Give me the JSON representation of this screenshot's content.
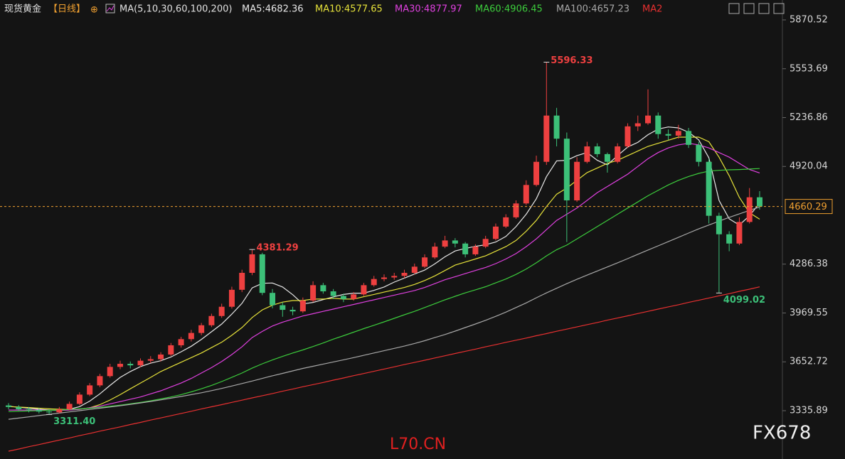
{
  "header": {
    "instrument": "现货黄金",
    "period": "【日线】",
    "add_icon": "⊕",
    "ma_set": "MA(5,10,30,60,100,200)"
  },
  "watermarks": [
    "L70.CN",
    "FX678"
  ],
  "chart_data": {
    "type": "candlestick",
    "ylim": [
      3022.5,
      5907.4
    ],
    "yticks": [
      3335.89,
      3652.72,
      3969.55,
      4286.38,
      4920.04,
      5236.86,
      5553.69,
      5870.52
    ],
    "up_color": "#ee4040",
    "down_color": "#3cc078",
    "last_price_color": "#f0a030",
    "ohlc": [
      [
        3370,
        3385,
        3345,
        3360
      ],
      [
        3360,
        3372,
        3335,
        3345
      ],
      [
        3345,
        3360,
        3325,
        3340
      ],
      [
        3340,
        3352,
        3318,
        3330
      ],
      [
        3330,
        3345,
        3311.4,
        3325
      ],
      [
        3325,
        3360,
        3318,
        3345
      ],
      [
        3345,
        3395,
        3338,
        3380
      ],
      [
        3380,
        3455,
        3372,
        3440
      ],
      [
        3440,
        3515,
        3430,
        3500
      ],
      [
        3500,
        3575,
        3488,
        3560
      ],
      [
        3560,
        3640,
        3550,
        3620
      ],
      [
        3620,
        3660,
        3605,
        3640
      ],
      [
        3640,
        3655,
        3610,
        3630
      ],
      [
        3630,
        3675,
        3618,
        3660
      ],
      [
        3660,
        3690,
        3645,
        3670
      ],
      [
        3670,
        3715,
        3655,
        3700
      ],
      [
        3700,
        3775,
        3690,
        3760
      ],
      [
        3760,
        3815,
        3745,
        3800
      ],
      [
        3800,
        3860,
        3785,
        3840
      ],
      [
        3840,
        3905,
        3825,
        3890
      ],
      [
        3890,
        3965,
        3878,
        3950
      ],
      [
        3950,
        4030,
        3938,
        4010
      ],
      [
        4010,
        4140,
        3998,
        4120
      ],
      [
        4120,
        4250,
        4105,
        4230
      ],
      [
        4230,
        4381.29,
        4215,
        4350
      ],
      [
        4350,
        4360,
        4085,
        4100
      ],
      [
        4100,
        4125,
        4000,
        4020
      ],
      [
        4020,
        4040,
        3945,
        3990
      ],
      [
        3990,
        4010,
        3955,
        3980
      ],
      [
        3980,
        4070,
        3970,
        4050
      ],
      [
        4050,
        4175,
        4040,
        4150
      ],
      [
        4150,
        4165,
        4095,
        4110
      ],
      [
        4110,
        4125,
        4060,
        4080
      ],
      [
        4080,
        4095,
        4040,
        4060
      ],
      [
        4060,
        4105,
        4050,
        4090
      ],
      [
        4090,
        4165,
        4080,
        4150
      ],
      [
        4150,
        4210,
        4140,
        4190
      ],
      [
        4190,
        4220,
        4175,
        4200
      ],
      [
        4200,
        4230,
        4185,
        4210
      ],
      [
        4210,
        4250,
        4195,
        4230
      ],
      [
        4230,
        4290,
        4220,
        4270
      ],
      [
        4270,
        4350,
        4260,
        4330
      ],
      [
        4330,
        4425,
        4320,
        4400
      ],
      [
        4400,
        4470,
        4390,
        4440
      ],
      [
        4440,
        4455,
        4395,
        4420
      ],
      [
        4420,
        4430,
        4330,
        4350
      ],
      [
        4350,
        4415,
        4340,
        4400
      ],
      [
        4400,
        4470,
        4390,
        4450
      ],
      [
        4450,
        4550,
        4440,
        4530
      ],
      [
        4530,
        4610,
        4520,
        4590
      ],
      [
        4590,
        4700,
        4580,
        4680
      ],
      [
        4680,
        4830,
        4670,
        4800
      ],
      [
        4800,
        4990,
        4790,
        4950
      ],
      [
        4950,
        5596.33,
        4930,
        5250
      ],
      [
        5250,
        5300,
        5050,
        5100
      ],
      [
        5100,
        5140,
        4430,
        4700
      ],
      [
        4700,
        4980,
        4690,
        4950
      ],
      [
        4950,
        5080,
        4940,
        5050
      ],
      [
        5050,
        5070,
        4980,
        5000
      ],
      [
        5000,
        5010,
        4880,
        4950
      ],
      [
        4950,
        5070,
        4940,
        5050
      ],
      [
        5050,
        5200,
        5040,
        5180
      ],
      [
        5180,
        5250,
        5150,
        5200
      ],
      [
        5200,
        5420,
        5190,
        5250
      ],
      [
        5250,
        5270,
        5100,
        5130
      ],
      [
        5130,
        5160,
        5090,
        5120
      ],
      [
        5120,
        5190,
        5100,
        5150
      ],
      [
        5150,
        5170,
        5040,
        5060
      ],
      [
        5060,
        5080,
        4920,
        4950
      ],
      [
        4950,
        4970,
        4550,
        4600
      ],
      [
        4600,
        4620,
        4099.02,
        4480
      ],
      [
        4480,
        4500,
        4370,
        4420
      ],
      [
        4420,
        4590,
        4410,
        4560
      ],
      [
        4560,
        4780,
        4550,
        4720
      ],
      [
        4720,
        4760,
        4640,
        4660.29
      ]
    ],
    "annotations": [
      {
        "text": "5596.33",
        "candle": 53,
        "field": 1
      },
      {
        "text": "4381.29",
        "candle": 24,
        "field": 1
      },
      {
        "text": "3311.40",
        "candle": 4,
        "field": 2
      },
      {
        "text": "4099.02",
        "candle": 70,
        "field": 2
      }
    ],
    "series": [
      {
        "name": "MA5:4682.36",
        "color": "#e8e8e8",
        "values": [
          3365,
          3358,
          3352,
          3345,
          3340,
          3337,
          3345,
          3362,
          3398,
          3445,
          3500,
          3552,
          3590,
          3622,
          3644,
          3660,
          3684,
          3718,
          3754,
          3798,
          3848,
          3898,
          3962,
          4032,
          4132,
          4162,
          4164,
          4138,
          4088,
          4028,
          4038,
          4056,
          4074,
          4090,
          4098,
          4098,
          4116,
          4138,
          4170,
          4196,
          4222,
          4248,
          4288,
          4334,
          4372,
          4388,
          4402,
          4412,
          4430,
          4466,
          4530,
          4610,
          4710,
          4854,
          4956,
          4960,
          4990,
          5010,
          4960,
          4930,
          4990,
          5046,
          5076,
          5126,
          5162,
          5176,
          5170,
          5142,
          5092,
          4976,
          4700,
          4580,
          4540,
          4600,
          4682.36
        ]
      },
      {
        "name": "MA10:4577.65",
        "color": "#e6e23a",
        "values": [
          3362,
          3360,
          3356,
          3352,
          3348,
          3345,
          3343,
          3345,
          3355,
          3375,
          3405,
          3440,
          3478,
          3515,
          3552,
          3590,
          3620,
          3650,
          3680,
          3710,
          3745,
          3780,
          3825,
          3875,
          3940,
          3990,
          4020,
          4040,
          4050,
          4050,
          4060,
          4060,
          4065,
          4060,
          4060,
          4075,
          4090,
          4105,
          4120,
          4135,
          4155,
          4180,
          4210,
          4245,
          4280,
          4300,
          4320,
          4340,
          4370,
          4400,
          4440,
          4500,
          4570,
          4660,
          4740,
          4780,
          4830,
          4880,
          4910,
          4940,
          4960,
          4990,
          5020,
          5050,
          5070,
          5090,
          5110,
          5110,
          5110,
          5080,
          4980,
          4860,
          4720,
          4620,
          4577.65
        ]
      },
      {
        "name": "MA30:4877.97",
        "color": "#e040e0",
        "values": [
          3340,
          3340,
          3340,
          3340,
          3338,
          3338,
          3340,
          3345,
          3355,
          3365,
          3380,
          3395,
          3410,
          3425,
          3445,
          3465,
          3490,
          3515,
          3545,
          3580,
          3615,
          3655,
          3700,
          3750,
          3810,
          3850,
          3885,
          3910,
          3930,
          3950,
          3965,
          3980,
          3995,
          4010,
          4025,
          4040,
          4055,
          4070,
          4085,
          4100,
          4115,
          4135,
          4160,
          4185,
          4205,
          4225,
          4245,
          4265,
          4290,
          4320,
          4355,
          4400,
          4450,
          4510,
          4570,
          4610,
          4650,
          4700,
          4750,
          4790,
          4830,
          4870,
          4920,
          4970,
          5010,
          5040,
          5060,
          5070,
          5060,
          5040,
          5010,
          4980,
          4940,
          4900,
          4877.97
        ]
      },
      {
        "name": "MA60:4906.45",
        "color": "#3ccc3c",
        "values": [
          3330,
          3332,
          3334,
          3336,
          3338,
          3340,
          3344,
          3348,
          3352,
          3358,
          3364,
          3372,
          3380,
          3390,
          3400,
          3412,
          3425,
          3440,
          3458,
          3478,
          3500,
          3525,
          3552,
          3580,
          3612,
          3640,
          3665,
          3688,
          3710,
          3730,
          3752,
          3775,
          3800,
          3822,
          3845,
          3868,
          3890,
          3912,
          3935,
          3958,
          3980,
          4005,
          4030,
          4055,
          4078,
          4100,
          4120,
          4140,
          4165,
          4190,
          4220,
          4255,
          4295,
          4340,
          4380,
          4410,
          4450,
          4490,
          4530,
          4570,
          4610,
          4650,
          4690,
          4730,
          4765,
          4800,
          4830,
          4855,
          4875,
          4890,
          4895,
          4898,
          4900,
          4903,
          4906.45
        ]
      },
      {
        "name": "MA100:4657.23",
        "color": "#a8a8a8",
        "values": [
          3280,
          3288,
          3296,
          3304,
          3312,
          3320,
          3328,
          3336,
          3344,
          3352,
          3360,
          3368,
          3377,
          3386,
          3396,
          3406,
          3417,
          3428,
          3440,
          3452,
          3466,
          3480,
          3496,
          3512,
          3528,
          3545,
          3562,
          3578,
          3594,
          3610,
          3624,
          3638,
          3652,
          3666,
          3680,
          3695,
          3710,
          3725,
          3740,
          3755,
          3772,
          3790,
          3810,
          3830,
          3852,
          3875,
          3898,
          3922,
          3948,
          3975,
          4005,
          4035,
          4068,
          4100,
          4130,
          4160,
          4188,
          4215,
          4242,
          4268,
          4295,
          4322,
          4350,
          4378,
          4405,
          4432,
          4460,
          4488,
          4515,
          4540,
          4565,
          4590,
          4612,
          4635,
          4657.23
        ]
      },
      {
        "name": "MA2",
        "color": "#e83030",
        "values": [
          3073,
          3087,
          3102,
          3116,
          3131,
          3145,
          3159,
          3174,
          3188,
          3203,
          3217,
          3231,
          3246,
          3260,
          3275,
          3289,
          3303,
          3318,
          3332,
          3347,
          3361,
          3375,
          3390,
          3404,
          3419,
          3433,
          3447,
          3462,
          3476,
          3491,
          3505,
          3519,
          3534,
          3548,
          3563,
          3577,
          3591,
          3606,
          3620,
          3635,
          3649,
          3663,
          3678,
          3692,
          3707,
          3721,
          3735,
          3750,
          3764,
          3779,
          3793,
          3807,
          3822,
          3836,
          3851,
          3865,
          3879,
          3894,
          3908,
          3923,
          3937,
          3951,
          3966,
          3980,
          3995,
          4009,
          4023,
          4038,
          4052,
          4067,
          4081,
          4095,
          4110,
          4124,
          4139
        ]
      }
    ]
  }
}
